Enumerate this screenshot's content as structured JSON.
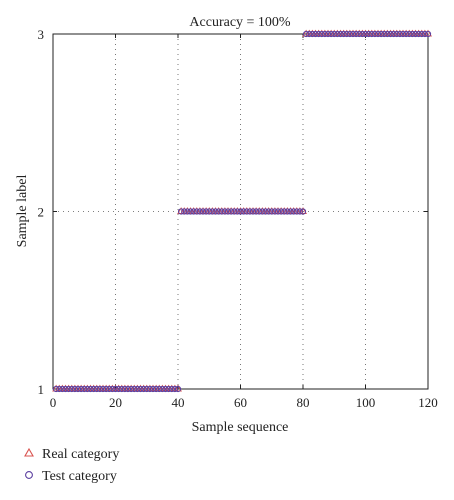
{
  "chart_data": {
    "type": "scatter",
    "title": "Accuracy = 100%",
    "xlabel": "Sample sequence",
    "ylabel": "Sample label",
    "xlim": [
      0,
      120
    ],
    "ylim": [
      1,
      3
    ],
    "xticks": [
      "0",
      "20",
      "40",
      "60",
      "80",
      "100",
      "120"
    ],
    "yticks": [
      "1",
      "2",
      "3"
    ],
    "grid": "dotted",
    "legend_position": "bottom-left, below plot",
    "series": [
      {
        "name": "Real category",
        "marker": "triangle",
        "color": "#d9534f",
        "segments": [
          {
            "x_from": 1,
            "x_to": 40,
            "y": 1
          },
          {
            "x_from": 41,
            "x_to": 80,
            "y": 2
          },
          {
            "x_from": 81,
            "x_to": 120,
            "y": 3
          }
        ]
      },
      {
        "name": "Test category",
        "marker": "circle",
        "color": "#5b3fa0",
        "segments": [
          {
            "x_from": 1,
            "x_to": 40,
            "y": 1
          },
          {
            "x_from": 41,
            "x_to": 80,
            "y": 2
          },
          {
            "x_from": 81,
            "x_to": 120,
            "y": 3
          }
        ]
      }
    ]
  }
}
